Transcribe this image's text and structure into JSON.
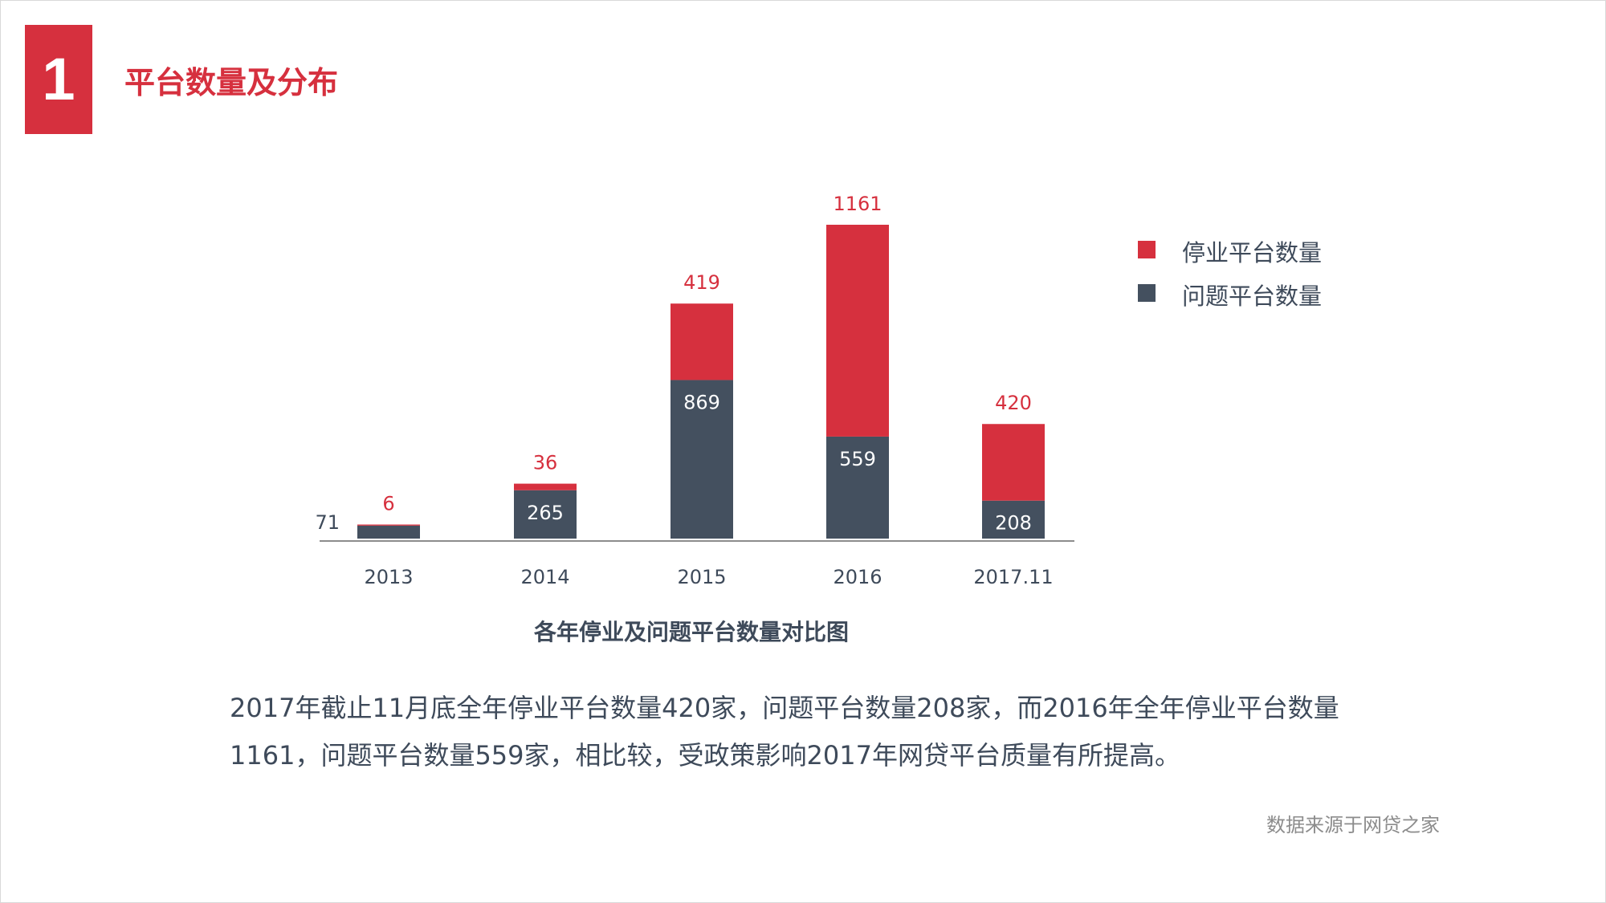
{
  "header": {
    "badge_number": "1",
    "title": "平台数量及分布"
  },
  "colors": {
    "accent": "#d6303e",
    "dark": "#44505f",
    "text": "#3e4a5a",
    "axis": "#8c8c8c"
  },
  "chart_data": {
    "type": "bar",
    "stacked": true,
    "title": "各年停业及问题平台数量对比图",
    "categories": [
      "2013",
      "2014",
      "2015",
      "2016",
      "2017.11"
    ],
    "series": [
      {
        "name": "问题平台数量",
        "color": "#44505f",
        "values": [
          71,
          265,
          869,
          559,
          208
        ]
      },
      {
        "name": "停业平台数量",
        "color": "#d6303e",
        "values": [
          6,
          36,
          419,
          1161,
          420
        ]
      }
    ],
    "legend": [
      {
        "label": "停业平台数量",
        "color": "#d6303e"
      },
      {
        "label": "问题平台数量",
        "color": "#44505f"
      }
    ],
    "xlabel": "",
    "ylabel": "",
    "grid": false,
    "legend_position": "right"
  },
  "body": {
    "summary_line1": "2017年截止11月底全年停业平台数量420家，问题平台数量208家，而2016年全年停业平台数量",
    "summary_line2": "1161，问题平台数量559家，相比较，受政策影响2017年网贷平台质量有所提高。"
  },
  "footer": {
    "source": "数据来源于网贷之家"
  }
}
